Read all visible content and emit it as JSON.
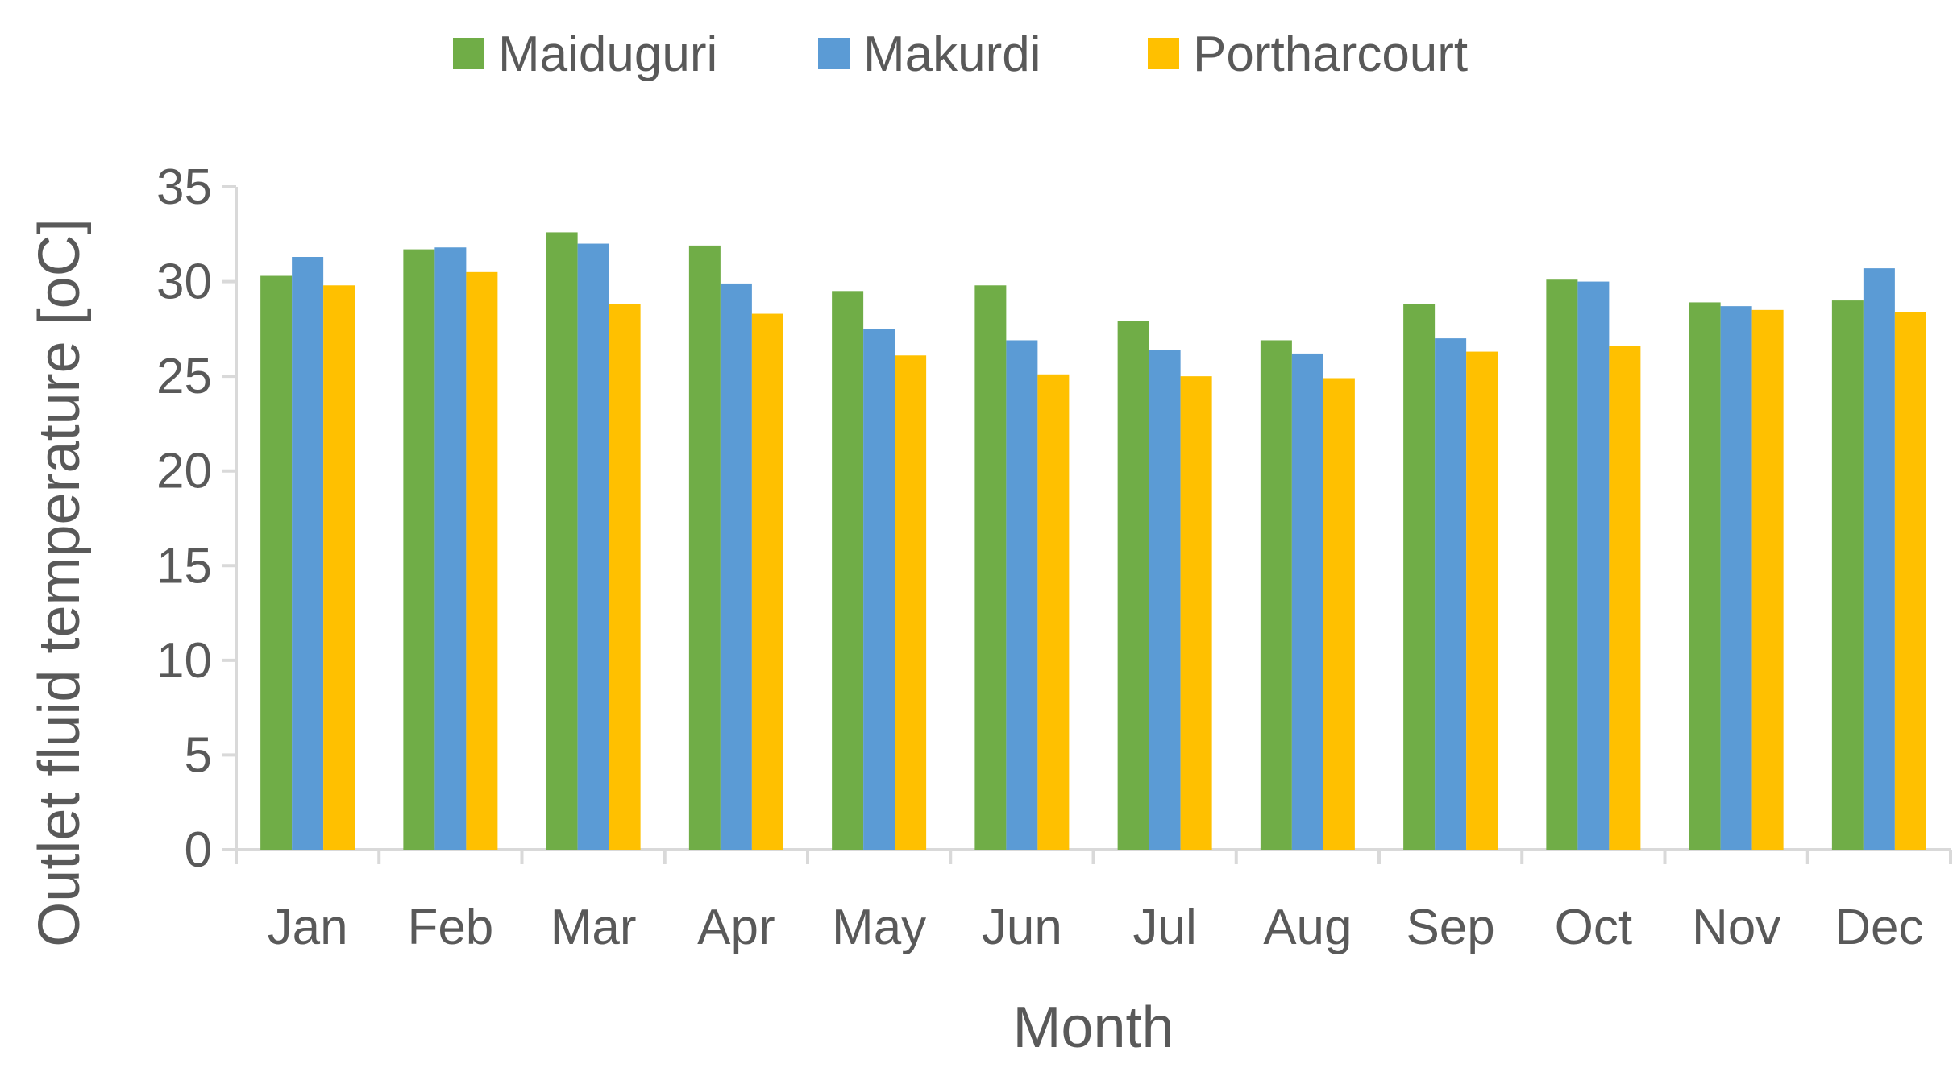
{
  "chart_data": {
    "type": "bar",
    "title": "",
    "xlabel": "Month",
    "ylabel": "Outlet fluid temperature [oC]",
    "ylim": [
      0,
      35
    ],
    "yticks": [
      0,
      5,
      10,
      15,
      20,
      25,
      30,
      35
    ],
    "grid": false,
    "legend_position": "top-center",
    "categories": [
      "Jan",
      "Feb",
      "Mar",
      "Apr",
      "May",
      "Jun",
      "Jul",
      "Aug",
      "Sep",
      "Oct",
      "Nov",
      "Dec"
    ],
    "series": [
      {
        "name": "Maiduguri",
        "color": "#70AD47",
        "values": [
          30.3,
          31.7,
          32.6,
          31.9,
          29.5,
          29.8,
          27.9,
          26.9,
          28.8,
          30.1,
          28.9,
          29.0
        ]
      },
      {
        "name": "Makurdi",
        "color": "#5B9BD5",
        "values": [
          31.3,
          31.8,
          32.0,
          29.9,
          27.5,
          26.9,
          26.4,
          26.2,
          27.0,
          30.0,
          28.7,
          30.7
        ]
      },
      {
        "name": "Portharcourt",
        "color": "#FFC000",
        "values": [
          29.8,
          30.5,
          28.8,
          28.3,
          26.1,
          25.1,
          25.0,
          24.9,
          26.3,
          26.6,
          28.5,
          28.4
        ]
      }
    ]
  },
  "colors": {
    "axis_line": "#D9D9D9",
    "text": "#595959"
  }
}
